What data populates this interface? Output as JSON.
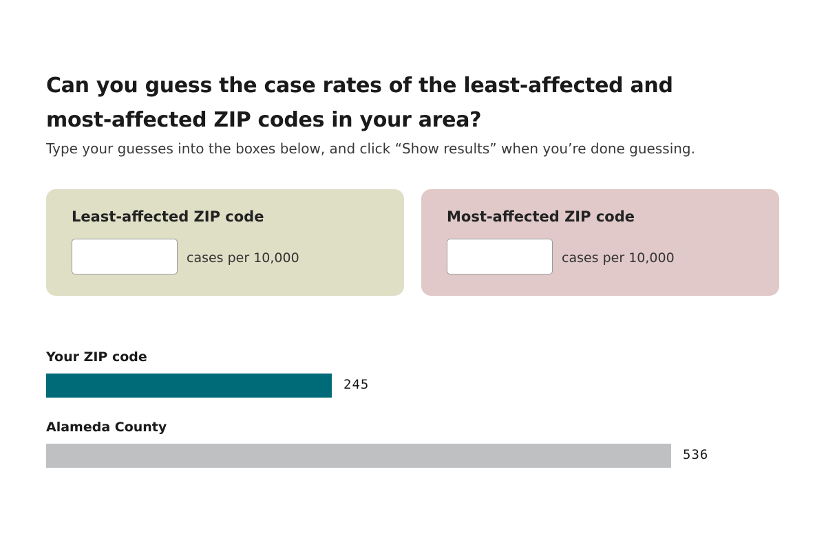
{
  "headline": "Can you guess the case rates of the least-affected and most-affected ZIP codes in your area?",
  "instructions": "Type your guesses into the boxes below, and click “Show results” when you’re done guessing.",
  "guess_cards": {
    "least": {
      "label": "Least-affected ZIP code",
      "value": "",
      "unit": "cases per 10,000",
      "color": "#dedfc5"
    },
    "most": {
      "label": "Most-affected ZIP code",
      "value": "",
      "unit": "cases per 10,000",
      "color": "#e1c9c9"
    }
  },
  "chart_data": {
    "type": "bar",
    "orientation": "horizontal",
    "categories": [
      "Your ZIP code",
      "Alameda County"
    ],
    "values": [
      245,
      536
    ],
    "value_labels": [
      "245",
      "536"
    ],
    "colors": [
      "#006b78",
      "#bfc0c2"
    ],
    "xlim": [
      0,
      536
    ]
  }
}
